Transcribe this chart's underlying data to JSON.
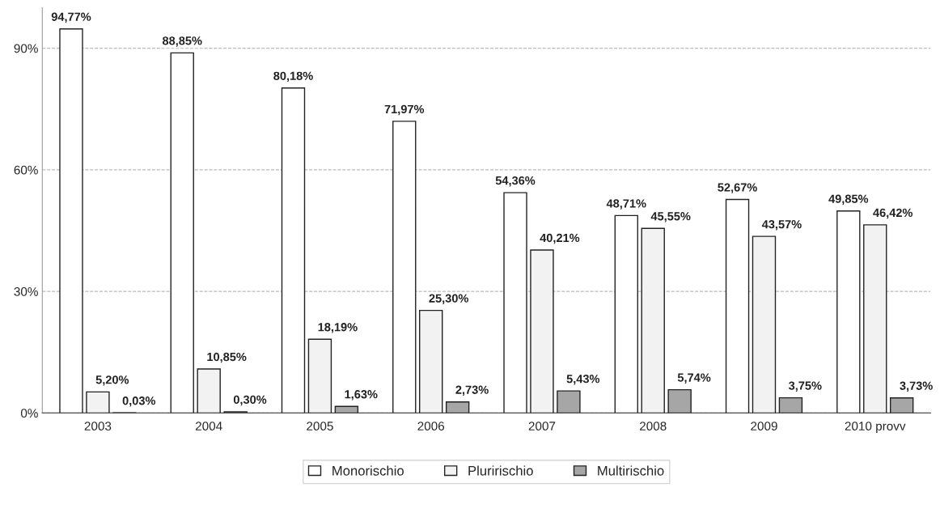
{
  "chart_data": {
    "type": "bar",
    "categories": [
      "2003",
      "2004",
      "2005",
      "2006",
      "2007",
      "2008",
      "2009",
      "2010 provv"
    ],
    "series": [
      {
        "name": "Monorischio",
        "color": "#ffffff",
        "values": [
          94.77,
          88.85,
          80.18,
          71.97,
          54.36,
          48.71,
          52.67,
          49.85
        ],
        "value_labels": [
          "94,77%",
          "88,85%",
          "80,18%",
          "71,97%",
          "54,36%",
          "48,71%",
          "52,67%",
          "49,85%"
        ]
      },
      {
        "name": "Pluririschio",
        "color": "#f2f2f2",
        "values": [
          5.2,
          10.85,
          18.19,
          25.3,
          40.21,
          45.55,
          43.57,
          46.42
        ],
        "value_labels": [
          "5,20%",
          "10,85%",
          "18,19%",
          "25,30%",
          "40,21%",
          "45,55%",
          "43,57%",
          "46,42%"
        ]
      },
      {
        "name": "Multirischio",
        "color": "#a6a6a6",
        "values": [
          0.03,
          0.3,
          1.63,
          2.73,
          5.43,
          5.74,
          3.75,
          3.73
        ],
        "value_labels": [
          "0,03%",
          "0,30%",
          "1,63%",
          "2,73%",
          "5,43%",
          "5,74%",
          "3,75%",
          "3,73%"
        ]
      }
    ],
    "ylim": [
      0,
      100
    ],
    "yticks": [
      {
        "value": 0,
        "label": "0%"
      },
      {
        "value": 30,
        "label": "30%"
      },
      {
        "value": 60,
        "label": "60%"
      },
      {
        "value": 90,
        "label": "90%"
      }
    ],
    "grid": "y",
    "legend": "bottom"
  }
}
